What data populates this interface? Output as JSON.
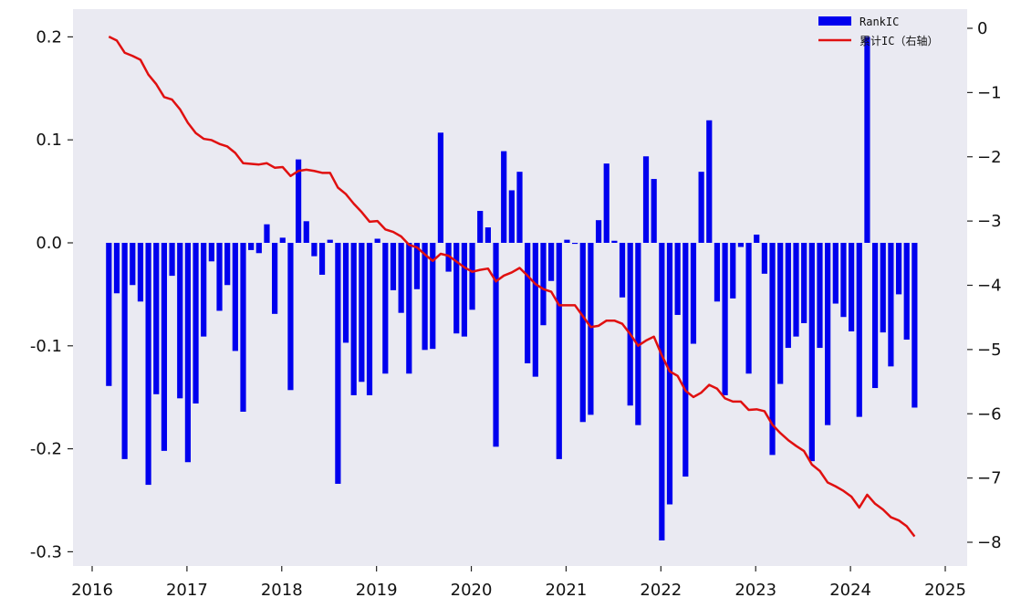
{
  "chart_data": {
    "type": "bar+line",
    "title": "",
    "xlabel": "",
    "ylabel_left": "",
    "ylabel_right": "",
    "x_start": "2016-03",
    "x_end": "2024-09",
    "x_tick_labels": [
      "2016",
      "2017",
      "2018",
      "2019",
      "2020",
      "2021",
      "2022",
      "2023",
      "2024",
      "2025"
    ],
    "ylim_left": [
      -0.31,
      0.22
    ],
    "ylim_right": [
      -8.2,
      0.1
    ],
    "yticks_left": [
      {
        "value": 0.2,
        "label": "0.2"
      },
      {
        "value": 0.1,
        "label": "0.1"
      },
      {
        "value": 0.0,
        "label": "0.0"
      },
      {
        "value": -0.1,
        "label": "-0.1"
      },
      {
        "value": -0.2,
        "label": "-0.2"
      },
      {
        "value": -0.3,
        "label": "-0.3"
      }
    ],
    "yticks_right": [
      {
        "value": 0,
        "label": "0"
      },
      {
        "value": -1,
        "label": "−1"
      },
      {
        "value": -2,
        "label": "−2"
      },
      {
        "value": -3,
        "label": "−3"
      },
      {
        "value": -4,
        "label": "−4"
      },
      {
        "value": -5,
        "label": "−5"
      },
      {
        "value": -6,
        "label": "−6"
      },
      {
        "value": -7,
        "label": "−7"
      },
      {
        "value": -8,
        "label": "−8"
      }
    ],
    "grid": false,
    "legend_position": "top-right",
    "series": [
      {
        "name": "RankIC",
        "kind": "bar",
        "axis": "left",
        "color": "#0000ee",
        "values": [
          -0.139,
          -0.049,
          -0.21,
          -0.041,
          -0.057,
          -0.235,
          -0.147,
          -0.202,
          -0.032,
          -0.151,
          -0.213,
          -0.156,
          -0.091,
          -0.018,
          -0.066,
          -0.041,
          -0.105,
          -0.164,
          -0.007,
          -0.01,
          0.018,
          -0.069,
          0.005,
          -0.143,
          0.081,
          0.021,
          -0.013,
          -0.031,
          0.003,
          -0.234,
          -0.097,
          -0.148,
          -0.135,
          -0.148,
          0.004,
          -0.127,
          -0.046,
          -0.068,
          -0.127,
          -0.045,
          -0.104,
          -0.103,
          0.107,
          -0.028,
          -0.088,
          -0.091,
          -0.065,
          0.031,
          0.015,
          -0.198,
          0.089,
          0.051,
          0.069,
          -0.117,
          -0.13,
          -0.08,
          -0.037,
          -0.21,
          0.003,
          -0.001,
          -0.174,
          -0.167,
          0.022,
          0.077,
          0.002,
          -0.053,
          -0.158,
          -0.177,
          0.084,
          0.062,
          -0.289,
          -0.254,
          -0.07,
          -0.227,
          -0.098,
          0.069,
          0.119,
          -0.057,
          -0.148,
          -0.054,
          -0.004,
          -0.127,
          0.008,
          -0.03,
          -0.206,
          -0.137,
          -0.102,
          -0.091,
          -0.078,
          -0.212,
          -0.102,
          -0.177,
          -0.059,
          -0.072,
          -0.086,
          -0.169,
          0.2,
          -0.141,
          -0.087,
          -0.12,
          -0.05,
          -0.094,
          -0.16
        ]
      },
      {
        "name": "累计IC（右轴）",
        "kind": "line",
        "axis": "right",
        "color": "#e01010",
        "values": [
          -0.13,
          -0.19,
          -0.38,
          -0.43,
          -0.49,
          -0.72,
          -0.87,
          -1.07,
          -1.11,
          -1.26,
          -1.47,
          -1.63,
          -1.72,
          -1.74,
          -1.8,
          -1.84,
          -1.94,
          -2.1,
          -2.11,
          -2.12,
          -2.1,
          -2.17,
          -2.16,
          -2.3,
          -2.22,
          -2.2,
          -2.22,
          -2.25,
          -2.25,
          -2.48,
          -2.58,
          -2.73,
          -2.86,
          -3.01,
          -3.0,
          -3.13,
          -3.17,
          -3.24,
          -3.37,
          -3.41,
          -3.52,
          -3.62,
          -3.51,
          -3.54,
          -3.63,
          -3.72,
          -3.79,
          -3.76,
          -3.74,
          -3.94,
          -3.85,
          -3.8,
          -3.73,
          -3.85,
          -3.98,
          -4.06,
          -4.1,
          -4.31,
          -4.31,
          -4.31,
          -4.48,
          -4.65,
          -4.63,
          -4.55,
          -4.55,
          -4.6,
          -4.76,
          -4.94,
          -4.86,
          -4.8,
          -5.09,
          -5.34,
          -5.41,
          -5.64,
          -5.74,
          -5.67,
          -5.55,
          -5.61,
          -5.76,
          -5.81,
          -5.81,
          -5.94,
          -5.93,
          -5.96,
          -6.17,
          -6.3,
          -6.41,
          -6.5,
          -6.58,
          -6.79,
          -6.89,
          -7.07,
          -7.13,
          -7.2,
          -7.29,
          -7.46,
          -7.26,
          -7.4,
          -7.49,
          -7.61,
          -7.66,
          -7.75,
          -7.91
        ]
      }
    ]
  }
}
